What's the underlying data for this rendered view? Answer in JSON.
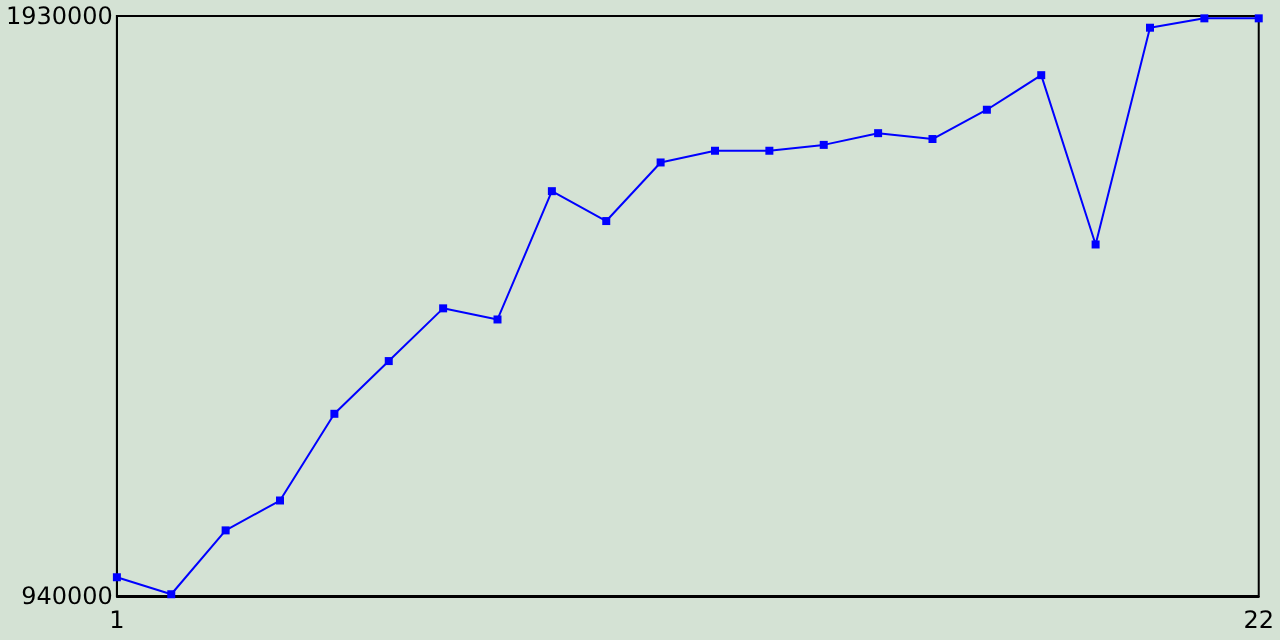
{
  "chart_data": {
    "type": "line",
    "x": [
      1,
      2,
      3,
      4,
      5,
      6,
      7,
      8,
      9,
      10,
      11,
      12,
      13,
      14,
      15,
      16,
      17,
      18,
      19,
      20,
      21,
      22
    ],
    "series": [
      {
        "color": "#0000ff",
        "values": [
          972000,
          943000,
          1052000,
          1103000,
          1251000,
          1341000,
          1431000,
          1412000,
          1631000,
          1580000,
          1680000,
          1700000,
          1700000,
          1710000,
          1730000,
          1720000,
          1770000,
          1829000,
          1540000,
          1910000,
          1926000,
          1926000
        ]
      }
    ],
    "xlim": [
      1,
      22
    ],
    "xticks": [
      1,
      22
    ],
    "ylim": [
      940000,
      1930000
    ],
    "yticks": [
      940000,
      1930000
    ],
    "grid": false,
    "marker": "square",
    "line_style": "solid"
  }
}
